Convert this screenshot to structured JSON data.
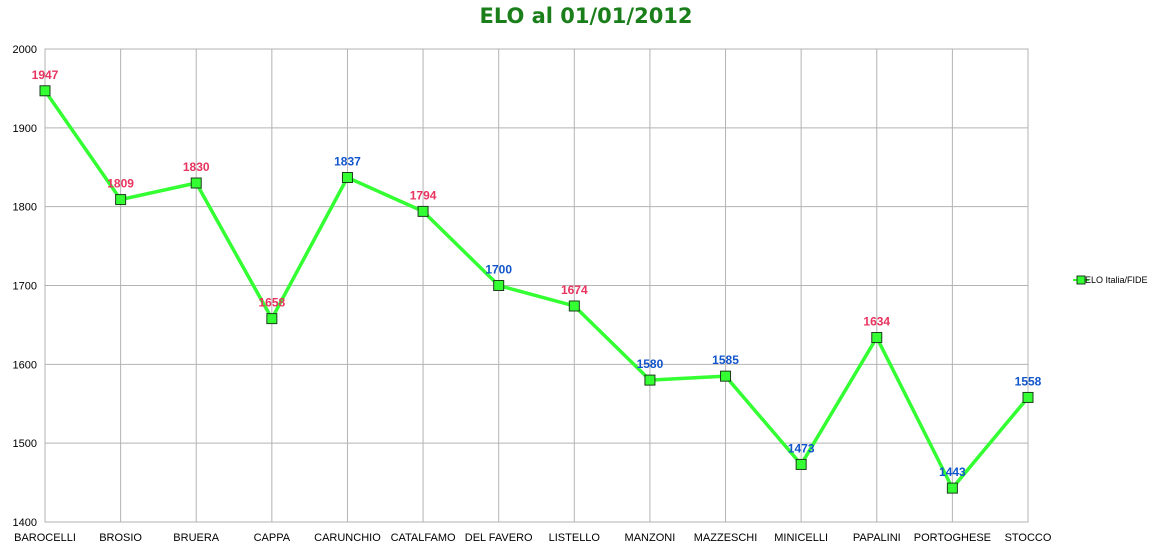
{
  "chart_data": {
    "type": "line",
    "title": "ELO al 01/01/2012",
    "xlabel": "",
    "ylabel": "",
    "ylim": [
      1400,
      2000
    ],
    "yticks": [
      1400,
      1500,
      1600,
      1700,
      1800,
      1900,
      2000
    ],
    "grid": true,
    "legend_position": "right",
    "categories": [
      "BAROCELLI",
      "BROSIO",
      "BRUERA",
      "CAPPA",
      "CARUNCHIO",
      "CATALFAMO",
      "DEL FAVERO",
      "LISTELLO",
      "MANZONI",
      "MAZZESCHI",
      "MINICELLI",
      "PAPALINI",
      "PORTOGHESE",
      "STOCCO"
    ],
    "series": [
      {
        "name": "ELO Italia/FIDE",
        "color": "#33ff33",
        "values": [
          1947,
          1809,
          1830,
          1658,
          1837,
          1794,
          1700,
          1674,
          1580,
          1585,
          1473,
          1634,
          1443,
          1558
        ],
        "label_colors": [
          "#e8335f",
          "#e8335f",
          "#e8335f",
          "#e8335f",
          "#1155cc",
          "#e8335f",
          "#1155cc",
          "#e8335f",
          "#1155cc",
          "#1155cc",
          "#1155cc",
          "#e8335f",
          "#1155cc",
          "#1155cc"
        ]
      }
    ]
  }
}
